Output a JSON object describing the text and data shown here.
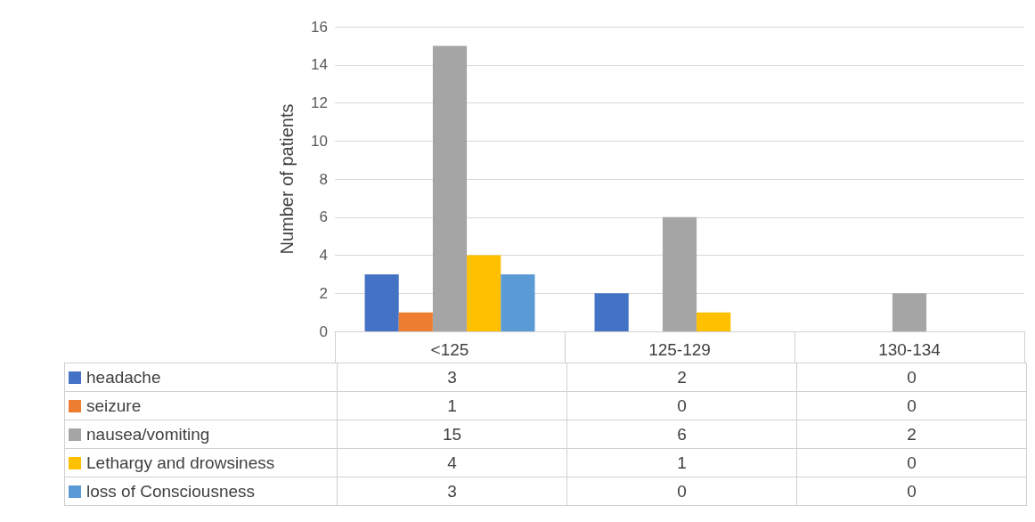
{
  "chart_data": {
    "type": "bar",
    "ylabel": "Number of patients",
    "categories": [
      "<125",
      "125-129",
      "130-134"
    ],
    "series": [
      {
        "name": "headache",
        "color": "#4472c4",
        "values": [
          3,
          2,
          0
        ]
      },
      {
        "name": "seizure",
        "color": "#ed7d31",
        "values": [
          1,
          0,
          0
        ]
      },
      {
        "name": "nausea/vomiting",
        "color": "#a5a5a5",
        "values": [
          15,
          6,
          2
        ]
      },
      {
        "name": "Lethargy and drowsiness",
        "color": "#ffc000",
        "values": [
          4,
          1,
          0
        ]
      },
      {
        "name": "loss of Consciousness",
        "color": "#5b9bd5",
        "values": [
          3,
          0,
          0
        ]
      }
    ],
    "ylim": [
      0,
      16
    ],
    "yticks": [
      0,
      2,
      4,
      6,
      8,
      10,
      12,
      14,
      16
    ],
    "grid": "y",
    "legend": "bottom",
    "data_labels": true
  }
}
